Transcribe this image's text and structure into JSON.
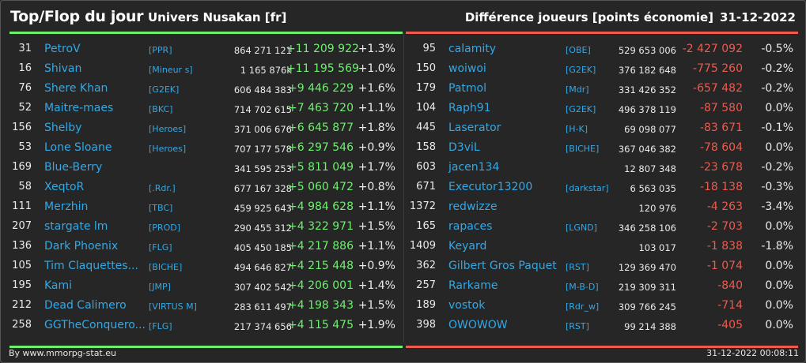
{
  "header": {
    "title": "Top/Flop du jour",
    "universe": "Univers Nusakan [fr]",
    "subtitle": "Différence joueurs [points économie]",
    "date": "31-12-2022"
  },
  "colors": {
    "positive": "#6ef06e",
    "negative": "#ee5a4e",
    "player_link": "#33a8e6"
  },
  "top": [
    {
      "rank": "31",
      "player": "PetroV",
      "alliance": "[PPR]",
      "points": "864 271 121",
      "diff": "+11 209 922",
      "pct": "+1.3%"
    },
    {
      "rank": "16",
      "player": "Shivan",
      "alliance": "[Mineur s]",
      "points": "1 165 876k",
      "diff": "+11 195 569",
      "pct": "+1.0%"
    },
    {
      "rank": "76",
      "player": "Shere Khan",
      "alliance": "[G2EK]",
      "points": "606 484 383",
      "diff": "+9 446 229",
      "pct": "+1.6%"
    },
    {
      "rank": "52",
      "player": "Maitre-maes",
      "alliance": "[BKC]",
      "points": "714 702 615",
      "diff": "+7 463 720",
      "pct": "+1.1%"
    },
    {
      "rank": "156",
      "player": "Shelby",
      "alliance": "[Heroes]",
      "points": "371 006 676",
      "diff": "+6 645 877",
      "pct": "+1.8%"
    },
    {
      "rank": "53",
      "player": "Lone Sloane",
      "alliance": "[Heroes]",
      "points": "707 177 578",
      "diff": "+6 297 546",
      "pct": "+0.9%"
    },
    {
      "rank": "169",
      "player": "Blue-Berry",
      "alliance": "",
      "points": "341 595 253",
      "diff": "+5 811 049",
      "pct": "+1.7%"
    },
    {
      "rank": "58",
      "player": "XeqtoR",
      "alliance": "[.Rdr.]",
      "points": "677 167 328",
      "diff": "+5 060 472",
      "pct": "+0.8%"
    },
    {
      "rank": "111",
      "player": "Merzhin",
      "alliance": "[TBC]",
      "points": "459 925 643",
      "diff": "+4 984 628",
      "pct": "+1.1%"
    },
    {
      "rank": "207",
      "player": "stargate lm",
      "alliance": "[PROD]",
      "points": "290 455 312",
      "diff": "+4 322 971",
      "pct": "+1.5%"
    },
    {
      "rank": "136",
      "player": "Dark Phoenix",
      "alliance": "[FLG]",
      "points": "405 450 185",
      "diff": "+4 217 886",
      "pct": "+1.1%"
    },
    {
      "rank": "105",
      "player": "Tim Claquettes...",
      "alliance": "[BICHE]",
      "points": "494 646 827",
      "diff": "+4 215 448",
      "pct": "+0.9%"
    },
    {
      "rank": "195",
      "player": "Kami",
      "alliance": "[JMP]",
      "points": "307 402 542",
      "diff": "+4 206 001",
      "pct": "+1.4%"
    },
    {
      "rank": "212",
      "player": "Dead Calimero",
      "alliance": "[VIRTUS M]",
      "points": "283 611 497",
      "diff": "+4 198 343",
      "pct": "+1.5%"
    },
    {
      "rank": "258",
      "player": "GGTheConquero...",
      "alliance": "[FLG]",
      "points": "217 374 656",
      "diff": "+4 115 475",
      "pct": "+1.9%"
    }
  ],
  "flop": [
    {
      "rank": "95",
      "player": "calamity",
      "alliance": "[OBE]",
      "points": "529 653 006",
      "diff": "-2 427 092",
      "pct": "-0.5%"
    },
    {
      "rank": "150",
      "player": "woiwoi",
      "alliance": "[G2EK]",
      "points": "376 182 648",
      "diff": "-775 260",
      "pct": "-0.2%"
    },
    {
      "rank": "179",
      "player": "Patmol",
      "alliance": "[Mdr]",
      "points": "331 426 352",
      "diff": "-657 482",
      "pct": "-0.2%"
    },
    {
      "rank": "104",
      "player": "Raph91",
      "alliance": "[G2EK]",
      "points": "496 378 119",
      "diff": "-87 580",
      "pct": "0.0%"
    },
    {
      "rank": "445",
      "player": "Laserator",
      "alliance": "[H-K]",
      "points": "69 098 077",
      "diff": "-83 671",
      "pct": "-0.1%"
    },
    {
      "rank": "158",
      "player": "D3viL",
      "alliance": "[BICHE]",
      "points": "367 046 382",
      "diff": "-78 604",
      "pct": "0.0%"
    },
    {
      "rank": "603",
      "player": "jacen134",
      "alliance": "",
      "points": "12 807 348",
      "diff": "-23 678",
      "pct": "-0.2%"
    },
    {
      "rank": "671",
      "player": "Executor13200",
      "alliance": "[darkstar]",
      "points": "6 563 035",
      "diff": "-18 138",
      "pct": "-0.3%"
    },
    {
      "rank": "1372",
      "player": "redwizze",
      "alliance": "",
      "points": "120 976",
      "diff": "-4 263",
      "pct": "-3.4%"
    },
    {
      "rank": "165",
      "player": "rapaces",
      "alliance": "[LGND]",
      "points": "346 258 106",
      "diff": "-2 703",
      "pct": "0.0%"
    },
    {
      "rank": "1409",
      "player": "Keyard",
      "alliance": "",
      "points": "103 017",
      "diff": "-1 838",
      "pct": "-1.8%"
    },
    {
      "rank": "362",
      "player": "Gilbert Gros Paquet",
      "alliance": "[RST]",
      "points": "129 369 470",
      "diff": "-1 074",
      "pct": "0.0%"
    },
    {
      "rank": "257",
      "player": "Rarkame",
      "alliance": "[M-B-D]",
      "points": "219 309 311",
      "diff": "-840",
      "pct": "0.0%"
    },
    {
      "rank": "189",
      "player": "vostok",
      "alliance": "[Rdr_w]",
      "points": "309 766 245",
      "diff": "-714",
      "pct": "0.0%"
    },
    {
      "rank": "398",
      "player": "OWOWOW",
      "alliance": "[RST]",
      "points": "99 214 388",
      "diff": "-405",
      "pct": "0.0%"
    }
  ],
  "footer": {
    "source": "By www.mmorpg-stat.eu",
    "timestamp": "31-12-2022 00:08:11"
  }
}
